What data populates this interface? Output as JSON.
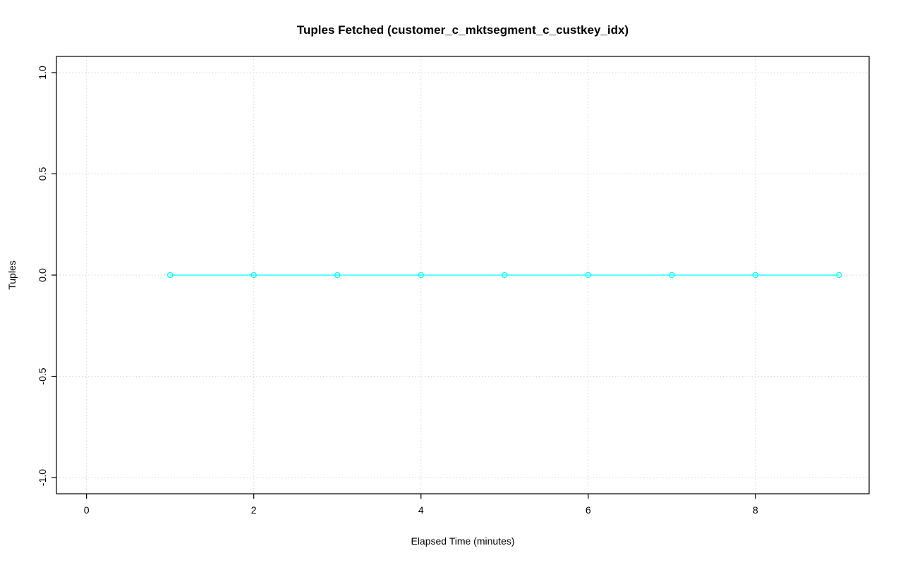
{
  "chart_data": {
    "type": "line",
    "title": "Tuples Fetched (customer_c_mktsegment_c_custkey_idx)",
    "xlabel": "Elapsed Time (minutes)",
    "ylabel": "Tuples",
    "x": [
      1,
      2,
      3,
      4,
      5,
      6,
      7,
      8,
      9
    ],
    "y": [
      0,
      0,
      0,
      0,
      0,
      0,
      0,
      0,
      0
    ],
    "xlim": [
      -0.36,
      9.36
    ],
    "ylim": [
      -1.08,
      1.08
    ],
    "xticks": [
      0,
      2,
      4,
      6,
      8
    ],
    "xtick_labels": [
      "0",
      "2",
      "4",
      "6",
      "8"
    ],
    "yticks": [
      -1.0,
      -0.5,
      0.0,
      0.5,
      1.0
    ],
    "ytick_labels": [
      "-1.0",
      "-0.5",
      "0.0",
      "0.5",
      "1.0"
    ],
    "grid": "on",
    "legend": "none",
    "marker": "open-circle",
    "series_color": "#00ffff",
    "grid_color": "#d6d6d6",
    "box_color": "#000000"
  }
}
